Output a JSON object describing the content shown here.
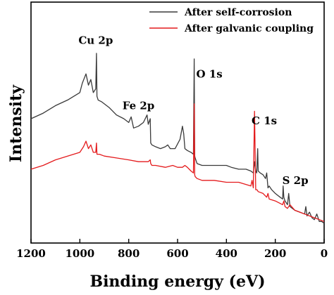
{
  "chart_data": {
    "type": "line",
    "title": "",
    "xlabel": "Binding energy (eV)",
    "ylabel": "Intensity",
    "xlim": [
      1200,
      0
    ],
    "x_reversed": true,
    "ylim": [
      0,
      100
    ],
    "y_ticks_shown": false,
    "grid": false,
    "legend_position": "top-right",
    "x_ticks": [
      1200,
      1000,
      800,
      600,
      400,
      200,
      0
    ],
    "x_tick_labels": [
      "1200",
      "1000",
      "800",
      "600",
      "400",
      "200",
      "0"
    ],
    "series": [
      {
        "name": "After self-corrosion",
        "color": "#3a3a3a",
        "x": [
          1200,
          1150,
          1100,
          1050,
          1000,
          990,
          975,
          965,
          955,
          945,
          935,
          932,
          930,
          925,
          910,
          880,
          850,
          820,
          800,
          790,
          780,
          760,
          740,
          725,
          720,
          712,
          710,
          705,
          690,
          670,
          650,
          640,
          630,
          610,
          590,
          580,
          575,
          570,
          560,
          545,
          535,
          532,
          530,
          528,
          520,
          500,
          450,
          400,
          380,
          350,
          320,
          300,
          290,
          285,
          280,
          276,
          272,
          270,
          262,
          250,
          240,
          235,
          230,
          225,
          215,
          200,
          190,
          180,
          170,
          168,
          165,
          160,
          150,
          145,
          140,
          120,
          100,
          80,
          75,
          70,
          60,
          50,
          40,
          30,
          20,
          10,
          0
        ],
        "y": [
          56,
          59,
          63,
          66,
          70,
          75,
          80,
          74,
          77,
          70,
          72,
          91,
          68,
          66,
          65,
          62,
          58,
          56,
          54,
          57,
          51,
          52,
          54,
          58,
          53,
          56,
          43,
          42,
          41,
          40,
          41,
          42,
          40,
          40,
          45,
          52,
          48,
          40,
          39,
          38,
          37,
          88,
          36,
          35,
          32,
          31,
          31,
          31,
          30,
          29,
          29,
          28,
          27,
          33,
          28,
          27,
          40,
          28,
          27,
          26,
          24,
          27,
          19,
          20,
          18,
          16,
          15,
          14,
          13,
          20,
          14,
          12,
          10,
          16,
          9,
          7,
          6,
          5,
          9,
          4,
          6,
          3,
          2,
          5,
          1,
          1,
          0
        ]
      },
      {
        "name": "After galvanic coupling",
        "color": "#e41a1c",
        "x": [
          1200,
          1150,
          1100,
          1050,
          1000,
          985,
          975,
          965,
          955,
          945,
          935,
          932,
          930,
          920,
          900,
          850,
          800,
          760,
          720,
          712,
          710,
          705,
          690,
          650,
          620,
          600,
          580,
          570,
          560,
          545,
          535,
          532,
          530,
          528,
          520,
          500,
          450,
          400,
          350,
          300,
          295,
          290,
          285,
          280,
          275,
          270,
          250,
          235,
          230,
          225,
          200,
          170,
          165,
          160,
          150,
          140,
          120,
          100,
          80,
          60,
          40,
          20,
          0
        ],
        "y": [
          29,
          31,
          34,
          36,
          38,
          41,
          44,
          40,
          42,
          38,
          38,
          43,
          37,
          37,
          36,
          35,
          34,
          33,
          33,
          34,
          32,
          31,
          31,
          30,
          31,
          30,
          30,
          31,
          30,
          28,
          27,
          64,
          26,
          25,
          24,
          23,
          23,
          22,
          22,
          20,
          23,
          19,
          60,
          18,
          18,
          17,
          16,
          14,
          16,
          13,
          12,
          10,
          12,
          9,
          8,
          10,
          7,
          6,
          5,
          4,
          3,
          2,
          1
        ]
      }
    ],
    "annotations": [
      {
        "text": "Cu 2p",
        "x": 935,
        "y": 96
      },
      {
        "text": "Fe 2p",
        "x": 760,
        "y": 61
      },
      {
        "text": "O 1s",
        "x": 470,
        "y": 78
      },
      {
        "text": "C 1s",
        "x": 245,
        "y": 53
      },
      {
        "text": "S 2p",
        "x": 118,
        "y": 21
      }
    ]
  }
}
